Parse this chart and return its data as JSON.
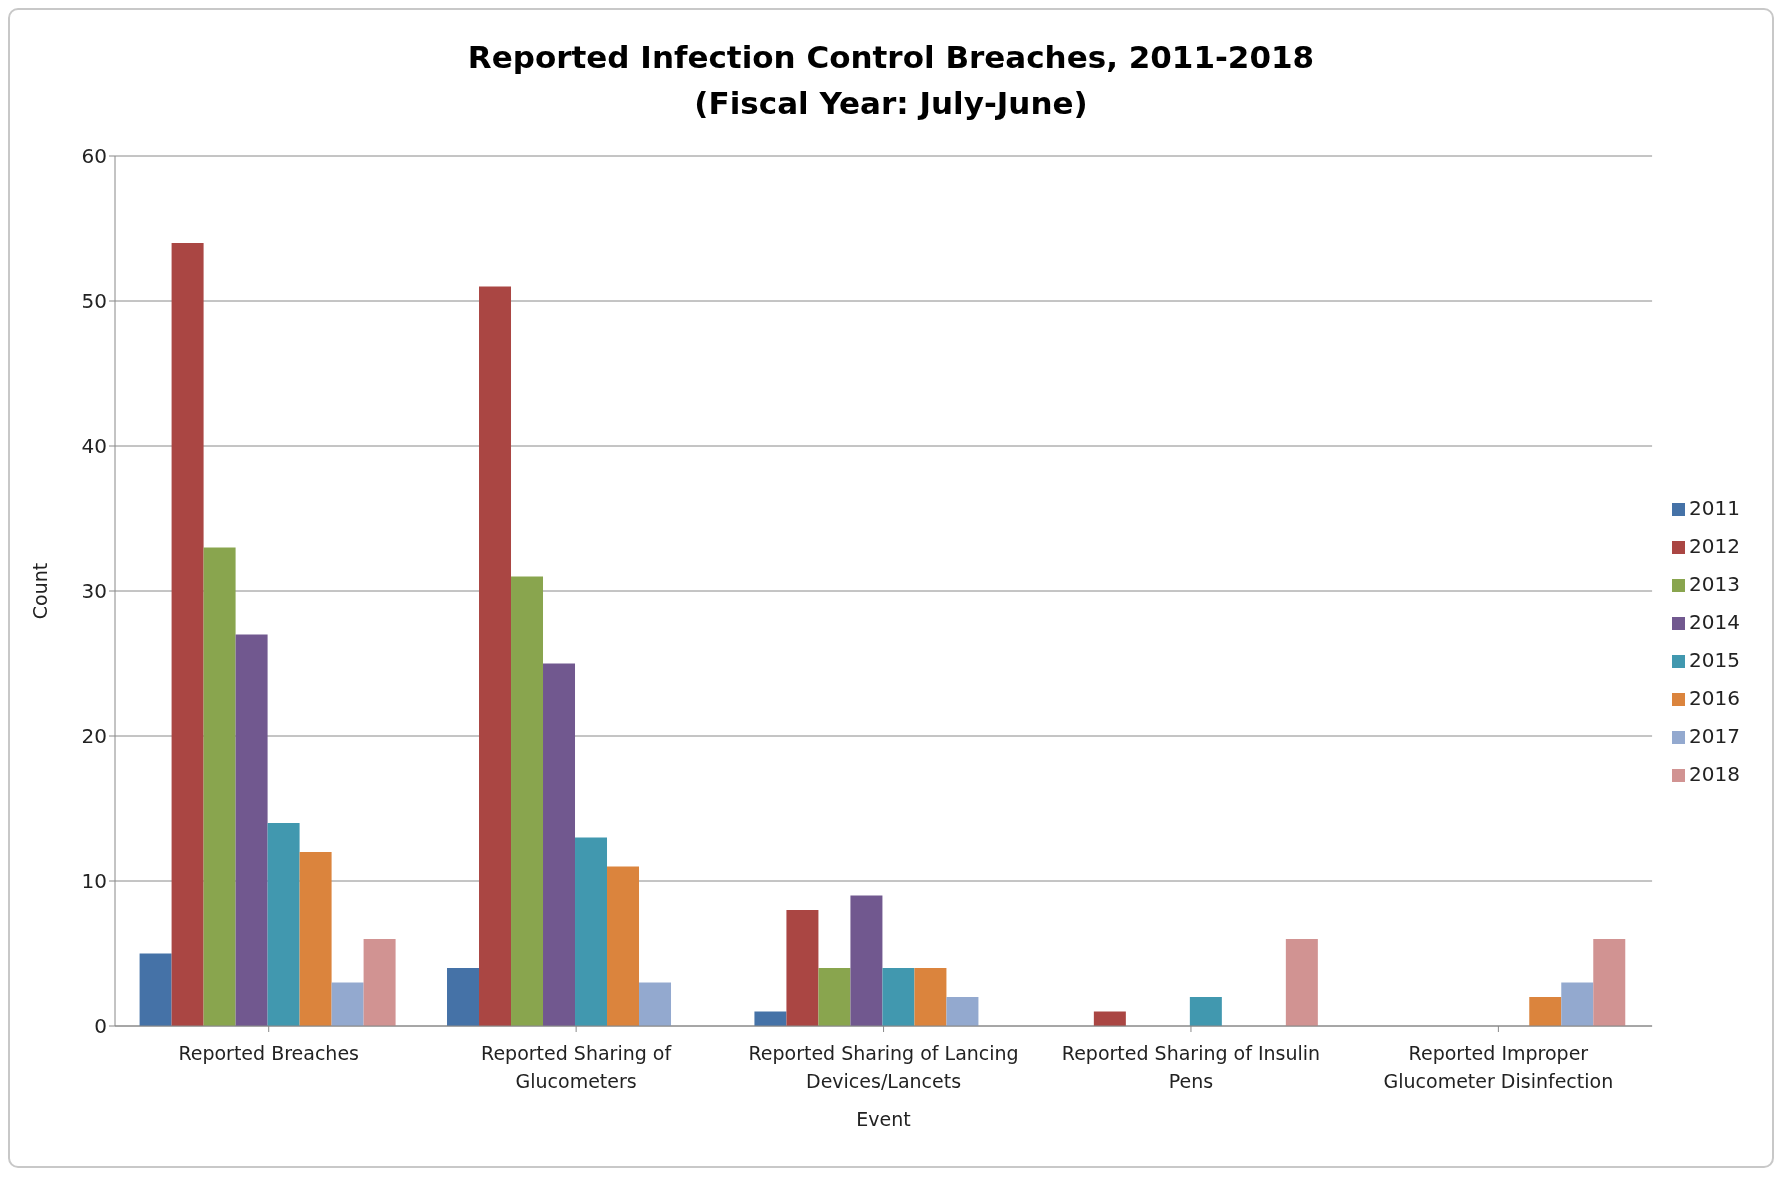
{
  "chart_data": {
    "type": "bar",
    "title": "Reported Infection Control Breaches, 2011-2018",
    "subtitle": "(Fiscal Year: July-June)",
    "xlabel": "Event",
    "ylabel": "Count",
    "categories": [
      "Reported Breaches",
      "Reported Sharing of Glucometers",
      "Reported Sharing of Lancing Devices/Lancets",
      "Reported Sharing of Insulin Pens",
      "Reported Improper Glucometer Disinfection"
    ],
    "series": [
      {
        "name": "2011",
        "color": "#4572a7",
        "values": [
          5,
          4,
          1,
          0,
          0
        ]
      },
      {
        "name": "2012",
        "color": "#aa4643",
        "values": [
          54,
          51,
          8,
          1,
          0
        ]
      },
      {
        "name": "2013",
        "color": "#89a54e",
        "values": [
          33,
          31,
          4,
          0,
          0
        ]
      },
      {
        "name": "2014",
        "color": "#71588f",
        "values": [
          27,
          25,
          9,
          0,
          0
        ]
      },
      {
        "name": "2015",
        "color": "#4198af",
        "values": [
          14,
          13,
          4,
          2,
          0
        ]
      },
      {
        "name": "2016",
        "color": "#db843d",
        "values": [
          12,
          11,
          4,
          0,
          2
        ]
      },
      {
        "name": "2017",
        "color": "#93a9cf",
        "values": [
          3,
          3,
          2,
          0,
          3
        ]
      },
      {
        "name": "2018",
        "color": "#d19392",
        "values": [
          6,
          0,
          0,
          6,
          6
        ]
      }
    ],
    "ylim": [
      0,
      60
    ],
    "yticks": [
      0,
      10,
      20,
      30,
      40,
      50,
      60
    ],
    "grid": "y",
    "legend": "right"
  }
}
